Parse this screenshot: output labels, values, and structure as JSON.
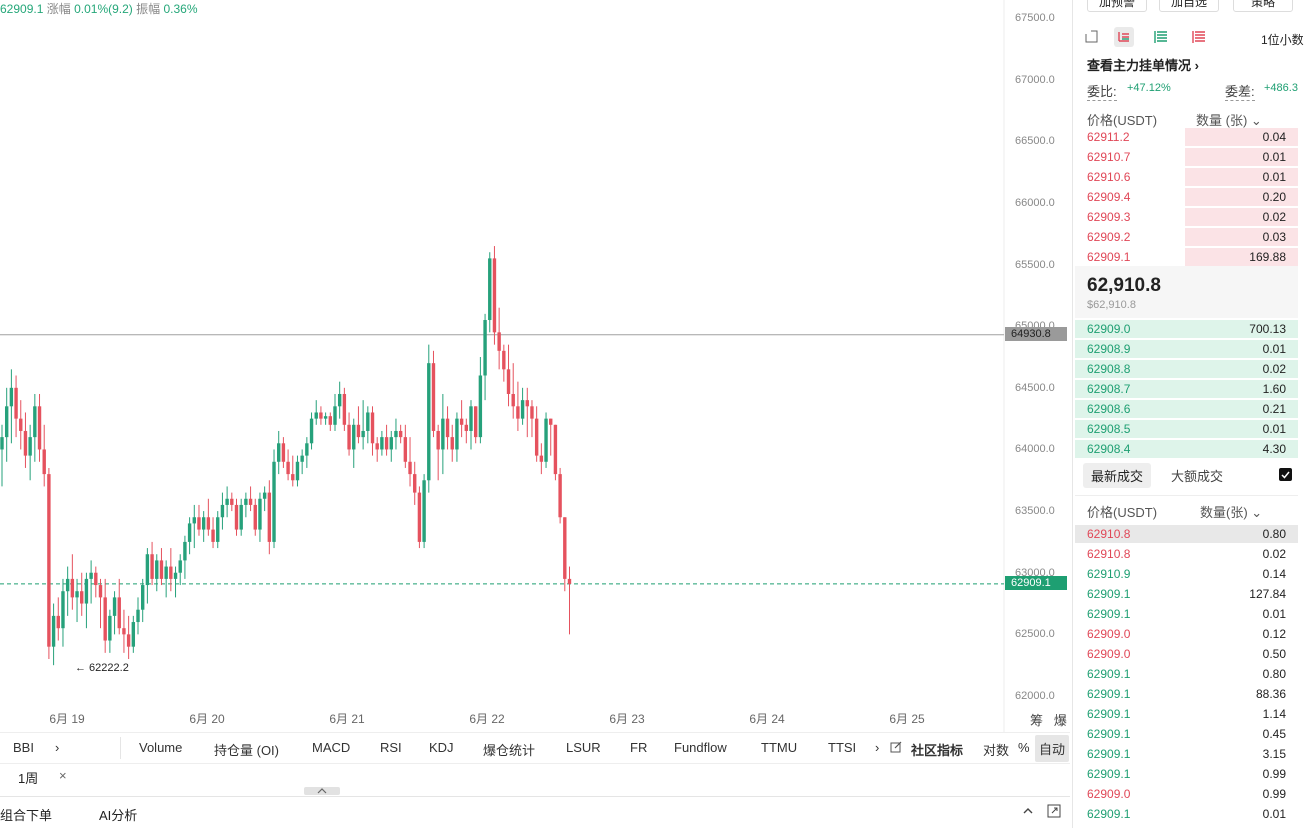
{
  "top_info": {
    "price": "62909.1",
    "change_label": "涨幅",
    "change_value": "0.01%(9.2)",
    "amp_label": "振幅",
    "amp_value": "0.36%"
  },
  "chart_data": {
    "type": "candlestick",
    "ylim": [
      62000,
      67600
    ],
    "y_ticks": [
      "67500.0",
      "67000.0",
      "66500.0",
      "66000.0",
      "65500.0",
      "65000.0",
      "64500.0",
      "64000.0",
      "63500.0",
      "63000.0",
      "62500.0",
      "62000.0"
    ],
    "x_ticks": [
      "6月 19",
      "6月 20",
      "6月 21",
      "6月 22",
      "6月 23",
      "6月 24",
      "6月 25"
    ],
    "horizontal_line": "64930.8",
    "last_price": "62909.1",
    "low_marker": "← 62222.2",
    "colors": {
      "up": "#26a17b",
      "down": "#e5525e"
    },
    "candles": [
      [
        64000,
        64200,
        63700,
        64100
      ],
      [
        64100,
        64500,
        63900,
        64350
      ],
      [
        64350,
        64650,
        64050,
        64500
      ],
      [
        64500,
        64600,
        64100,
        64250
      ],
      [
        64250,
        64400,
        64000,
        64150
      ],
      [
        64150,
        64300,
        63850,
        63950
      ],
      [
        63950,
        64200,
        63750,
        64100
      ],
      [
        64100,
        64450,
        63900,
        64350
      ],
      [
        64350,
        64450,
        63900,
        64000
      ],
      [
        64000,
        64200,
        63700,
        63800
      ],
      [
        63800,
        63850,
        62300,
        62400
      ],
      [
        62400,
        62750,
        62250,
        62650
      ],
      [
        62650,
        62800,
        62450,
        62550
      ],
      [
        62550,
        62950,
        62400,
        62850
      ],
      [
        62850,
        63050,
        62650,
        62950
      ],
      [
        62950,
        63150,
        62700,
        62800
      ],
      [
        62800,
        62950,
        62600,
        62850
      ],
      [
        62850,
        63000,
        62650,
        62750
      ],
      [
        62750,
        63000,
        62550,
        62950
      ],
      [
        62950,
        63100,
        62750,
        63000
      ],
      [
        63000,
        63050,
        62800,
        62900
      ],
      [
        62900,
        62950,
        62550,
        62800
      ],
      [
        62800,
        62950,
        62350,
        62450
      ],
      [
        62450,
        62700,
        62350,
        62650
      ],
      [
        62650,
        62850,
        62500,
        62800
      ],
      [
        62800,
        62950,
        62500,
        62550
      ],
      [
        62550,
        62700,
        62350,
        62500
      ],
      [
        62500,
        62650,
        62300,
        62400
      ],
      [
        62400,
        62650,
        62350,
        62600
      ],
      [
        62600,
        62800,
        62500,
        62700
      ],
      [
        62700,
        62950,
        62600,
        62900
      ],
      [
        62900,
        63200,
        62750,
        63150
      ],
      [
        63150,
        63250,
        62900,
        62950
      ],
      [
        62950,
        63150,
        62850,
        63100
      ],
      [
        63100,
        63200,
        62900,
        62950
      ],
      [
        62950,
        63100,
        62800,
        63050
      ],
      [
        63050,
        63200,
        62850,
        62950
      ],
      [
        62950,
        63050,
        62800,
        63000
      ],
      [
        63000,
        63150,
        62900,
        63100
      ],
      [
        63100,
        63300,
        62950,
        63250
      ],
      [
        63250,
        63450,
        63150,
        63400
      ],
      [
        63400,
        63550,
        63200,
        63450
      ],
      [
        63450,
        63550,
        63300,
        63350
      ],
      [
        63350,
        63500,
        63250,
        63450
      ],
      [
        63450,
        63600,
        63300,
        63350
      ],
      [
        63350,
        63450,
        63200,
        63250
      ],
      [
        63250,
        63500,
        63200,
        63450
      ],
      [
        63450,
        63650,
        63350,
        63550
      ],
      [
        63550,
        63700,
        63450,
        63600
      ],
      [
        63600,
        63650,
        63500,
        63550
      ],
      [
        63550,
        63600,
        63300,
        63350
      ],
      [
        63350,
        63600,
        63300,
        63550
      ],
      [
        63550,
        63650,
        63450,
        63600
      ],
      [
        63600,
        63700,
        63500,
        63550
      ],
      [
        63550,
        63600,
        63300,
        63350
      ],
      [
        63350,
        63650,
        63250,
        63600
      ],
      [
        63600,
        63700,
        63500,
        63650
      ],
      [
        63650,
        63750,
        63150,
        63250
      ],
      [
        63250,
        64000,
        63200,
        63900
      ],
      [
        63900,
        64150,
        63800,
        64050
      ],
      [
        64050,
        64100,
        63850,
        63900
      ],
      [
        63900,
        64000,
        63750,
        63800
      ],
      [
        63800,
        63950,
        63700,
        63750
      ],
      [
        63750,
        63950,
        63700,
        63900
      ],
      [
        63900,
        64000,
        63800,
        63950
      ],
      [
        63950,
        64100,
        63850,
        64050
      ],
      [
        64050,
        64300,
        64000,
        64250
      ],
      [
        64250,
        64400,
        64200,
        64300
      ],
      [
        64300,
        64350,
        64200,
        64250
      ],
      [
        64250,
        64300,
        64200,
        64270
      ],
      [
        64270,
        64300,
        64150,
        64200
      ],
      [
        64200,
        64450,
        64150,
        64350
      ],
      [
        64350,
        64550,
        64250,
        64450
      ],
      [
        64450,
        64500,
        64150,
        64200
      ],
      [
        64200,
        64300,
        63950,
        64000
      ],
      [
        64000,
        64250,
        63850,
        64200
      ],
      [
        64200,
        64350,
        64050,
        64100
      ],
      [
        64100,
        64400,
        64000,
        64150
      ],
      [
        64150,
        64350,
        64050,
        64300
      ],
      [
        64300,
        64350,
        63950,
        64050
      ],
      [
        64050,
        64100,
        63900,
        64000
      ],
      [
        64000,
        64150,
        63950,
        64100
      ],
      [
        64100,
        64200,
        63950,
        64000
      ],
      [
        64000,
        64150,
        63900,
        64100
      ],
      [
        64100,
        64250,
        64000,
        64150
      ],
      [
        64150,
        64200,
        64050,
        64100
      ],
      [
        64100,
        64200,
        63850,
        63900
      ],
      [
        63900,
        64100,
        63700,
        63800
      ],
      [
        63800,
        63900,
        63550,
        63650
      ],
      [
        63650,
        63700,
        63200,
        63250
      ],
      [
        63250,
        63800,
        63200,
        63750
      ],
      [
        63750,
        64850,
        63650,
        64700
      ],
      [
        64700,
        64800,
        64100,
        64150
      ],
      [
        64150,
        64200,
        63750,
        64000
      ],
      [
        64000,
        64450,
        63800,
        64250
      ],
      [
        64250,
        64350,
        64000,
        64100
      ],
      [
        64100,
        64200,
        63900,
        64000
      ],
      [
        64000,
        64300,
        63900,
        64250
      ],
      [
        64250,
        64400,
        64100,
        64200
      ],
      [
        64200,
        64250,
        64050,
        64150
      ],
      [
        64150,
        64400,
        64000,
        64350
      ],
      [
        64350,
        64350,
        64050,
        64100
      ],
      [
        64100,
        64750,
        64050,
        64600
      ],
      [
        64600,
        65100,
        64400,
        65050
      ],
      [
        65050,
        65600,
        64950,
        65550
      ],
      [
        65550,
        65650,
        64850,
        64950
      ],
      [
        64950,
        65150,
        64650,
        64800
      ],
      [
        64800,
        64850,
        64550,
        64650
      ],
      [
        64650,
        64850,
        64350,
        64450
      ],
      [
        64450,
        64700,
        64250,
        64350
      ],
      [
        64350,
        64550,
        64150,
        64250
      ],
      [
        64250,
        64500,
        64200,
        64400
      ],
      [
        64400,
        64500,
        64100,
        64350
      ],
      [
        64350,
        64400,
        64100,
        64250
      ],
      [
        64250,
        64350,
        63900,
        63950
      ],
      [
        63950,
        64050,
        63800,
        63900
      ],
      [
        63900,
        64300,
        63850,
        64250
      ],
      [
        64250,
        64250,
        63950,
        64200
      ],
      [
        64200,
        64200,
        63750,
        63800
      ],
      [
        63800,
        63850,
        63400,
        63450
      ],
      [
        63450,
        63450,
        62850,
        62950
      ],
      [
        62950,
        63050,
        62500,
        62909
      ]
    ]
  },
  "chart_tools": {
    "label_a": "筹",
    "label_b": "爆"
  },
  "indicator_bar": {
    "items": [
      "BBI",
      "›",
      "Volume",
      "持仓量 (OI)",
      "MACD",
      "RSI",
      "KDJ",
      "爆仓统计",
      "LSUR",
      "FR",
      "Fundflow",
      "TTMU",
      "TTSI",
      "›"
    ],
    "community": "社区指标",
    "log": "对数",
    "percent": "%",
    "auto": "自动"
  },
  "period_row": {
    "label": "1周",
    "close": "×"
  },
  "bottom_bar": {
    "combo": "组合下单",
    "ai": "AI分析"
  },
  "orderbook": {
    "top_buttons": [
      "加预警",
      "加自选",
      "策略"
    ],
    "decimal_label": "1位小数",
    "link": "查看主力挂单情况 ›",
    "ratio_label": "委比:",
    "ratio_value": "+47.12%",
    "diff_label": "委差:",
    "diff_value": "+486.3",
    "header_price": "价格(USDT)",
    "header_qty": "数量 (张) ⌄",
    "asks": [
      [
        "62911.2",
        "0.04"
      ],
      [
        "62910.7",
        "0.01"
      ],
      [
        "62910.6",
        "0.01"
      ],
      [
        "62909.4",
        "0.20"
      ],
      [
        "62909.3",
        "0.02"
      ],
      [
        "62909.2",
        "0.03"
      ],
      [
        "62909.1",
        "169.88"
      ]
    ],
    "mid_price": "62,910.8",
    "mid_usd": "$62,910.8",
    "bids": [
      [
        "62909.0",
        "700.13"
      ],
      [
        "62908.9",
        "0.01"
      ],
      [
        "62908.8",
        "0.02"
      ],
      [
        "62908.7",
        "1.60"
      ],
      [
        "62908.6",
        "0.21"
      ],
      [
        "62908.5",
        "0.01"
      ],
      [
        "62908.4",
        "4.30"
      ]
    ],
    "trade_tabs": [
      "最新成交",
      "大额成交"
    ],
    "trade_header_price": "价格(USDT)",
    "trade_header_qty": "数量(张) ⌄",
    "trades": [
      [
        "62910.8",
        "0.80",
        "red"
      ],
      [
        "62910.8",
        "0.02",
        "red"
      ],
      [
        "62910.9",
        "0.14",
        "green"
      ],
      [
        "62909.1",
        "127.84",
        "green"
      ],
      [
        "62909.1",
        "0.01",
        "green"
      ],
      [
        "62909.0",
        "0.12",
        "red"
      ],
      [
        "62909.0",
        "0.50",
        "red"
      ],
      [
        "62909.1",
        "0.80",
        "green"
      ],
      [
        "62909.1",
        "88.36",
        "green"
      ],
      [
        "62909.1",
        "1.14",
        "green"
      ],
      [
        "62909.1",
        "0.45",
        "green"
      ],
      [
        "62909.1",
        "3.15",
        "green"
      ],
      [
        "62909.1",
        "0.99",
        "green"
      ],
      [
        "62909.0",
        "0.99",
        "red"
      ],
      [
        "62909.1",
        "0.01",
        "green"
      ]
    ],
    "colors": {
      "ask": "#e04757",
      "bid": "#1e9f72",
      "ask_bg": "#fbe3e6",
      "bid_bg": "#def4ea"
    }
  }
}
